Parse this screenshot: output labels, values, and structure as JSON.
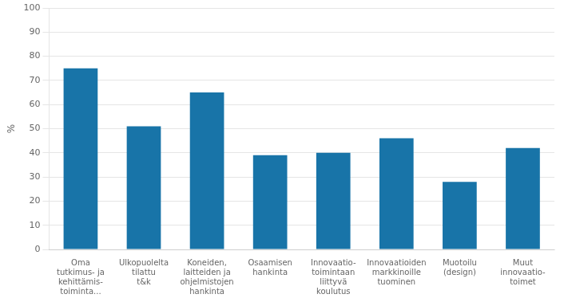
{
  "chart_data": {
    "type": "bar",
    "categories": [
      "Oma\ntutkimus- ja\nkehittämis-\ntoiminta...",
      "Ulkopuolelta\ntilattu\nt&k",
      "Koneiden,\nlaitteiden ja\nohjelmistojen\nhankinta",
      "Osaamisen\nhankinta",
      "Innovaatio-\ntoimintaan\nliittyvä\nkoulutus",
      "Innovaatioiden\nmarkkinoille\ntuominen",
      "Muotoilu\n(design)",
      "Muut\ninnovaatio-\ntoimet"
    ],
    "values": [
      75,
      51,
      65,
      39,
      40,
      46,
      28,
      42
    ],
    "color": "#1874a8",
    "ylabel": "%",
    "ylim": [
      0,
      100
    ],
    "yticks": [
      0,
      10,
      20,
      30,
      40,
      50,
      60,
      70,
      80,
      90,
      100
    ],
    "grid": true
  }
}
